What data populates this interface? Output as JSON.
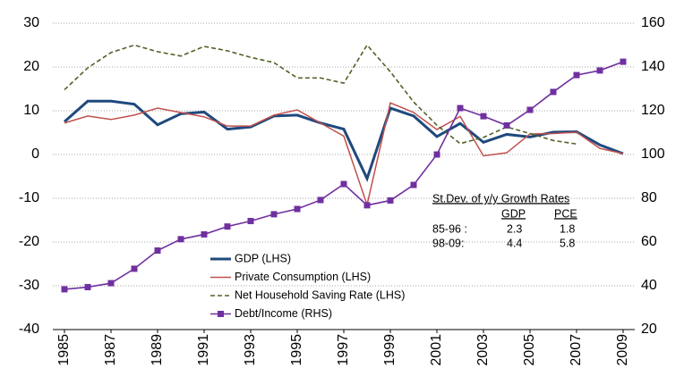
{
  "chart_data": {
    "type": "line",
    "x": [
      1985,
      1986,
      1987,
      1988,
      1989,
      1990,
      1991,
      1992,
      1993,
      1994,
      1995,
      1996,
      1997,
      1998,
      1999,
      2000,
      2001,
      2002,
      2003,
      2004,
      2005,
      2006,
      2007,
      2008,
      2009
    ],
    "xlim": [
      1984.5,
      2009.5
    ],
    "xticks": [
      1985,
      1987,
      1989,
      1991,
      1993,
      1995,
      1997,
      1999,
      2001,
      2003,
      2005,
      2007,
      2009
    ],
    "ylim": [
      -40,
      30
    ],
    "yticks": [
      -40,
      -30,
      -20,
      -10,
      0,
      10,
      20,
      30
    ],
    "y2lim": [
      20,
      160
    ],
    "y2ticks": [
      20,
      40,
      60,
      80,
      100,
      120,
      140,
      160
    ],
    "grid": true,
    "series": [
      {
        "name": "GDP (LHS)",
        "color": "#1f497d",
        "values": [
          7.5,
          12.2,
          12.2,
          11.5,
          6.8,
          9.3,
          9.7,
          5.8,
          6.3,
          8.8,
          9.0,
          7.2,
          5.8,
          -5.5,
          10.6,
          8.8,
          4.1,
          7.1,
          2.8,
          4.6,
          4.0,
          5.1,
          5.2,
          2.2,
          0.2
        ]
      },
      {
        "name": "Private Consumption (LHS)",
        "color": "#c0504d",
        "values": [
          7.2,
          8.8,
          8.0,
          9.0,
          10.6,
          9.6,
          8.6,
          6.5,
          6.5,
          9.0,
          10.2,
          7.2,
          4.2,
          -11.5,
          11.8,
          9.6,
          5.7,
          8.7,
          -0.3,
          0.4,
          4.7,
          4.8,
          5.1,
          1.4,
          0.2
        ]
      },
      {
        "name": "Net Household Saving Rate (LHS)",
        "color": "#4f6228",
        "values": [
          14.8,
          19.8,
          23.3,
          25.0,
          23.5,
          22.5,
          24.7,
          23.7,
          22.2,
          21.0,
          17.5,
          17.5,
          16.3,
          25.0,
          18.9,
          12.0,
          6.7,
          2.5,
          3.9,
          6.3,
          4.8,
          3.2,
          2.4,
          null,
          null
        ]
      },
      {
        "name": "Debt/Income (RHS)",
        "color": "#7030a0",
        "axis": "y2",
        "values": [
          38.4,
          39.4,
          41.2,
          47.8,
          56.1,
          61.3,
          63.5,
          67.1,
          69.6,
          72.7,
          75.1,
          79.2,
          86.5,
          76.8,
          79.0,
          86.1,
          100.0,
          121.2,
          117.5,
          113.3,
          120.4,
          128.6,
          136.3,
          138.4,
          142.4
        ]
      }
    ],
    "annotation": {
      "title": "St.Dev. of  y/y Growth Rates",
      "columns": [
        "GDP",
        "PCE"
      ],
      "rows": [
        {
          "label": "85-96 :",
          "values": [
            2.3,
            1.8
          ]
        },
        {
          "label": "98-09:",
          "values": [
            4.4,
            5.8
          ]
        }
      ]
    }
  }
}
